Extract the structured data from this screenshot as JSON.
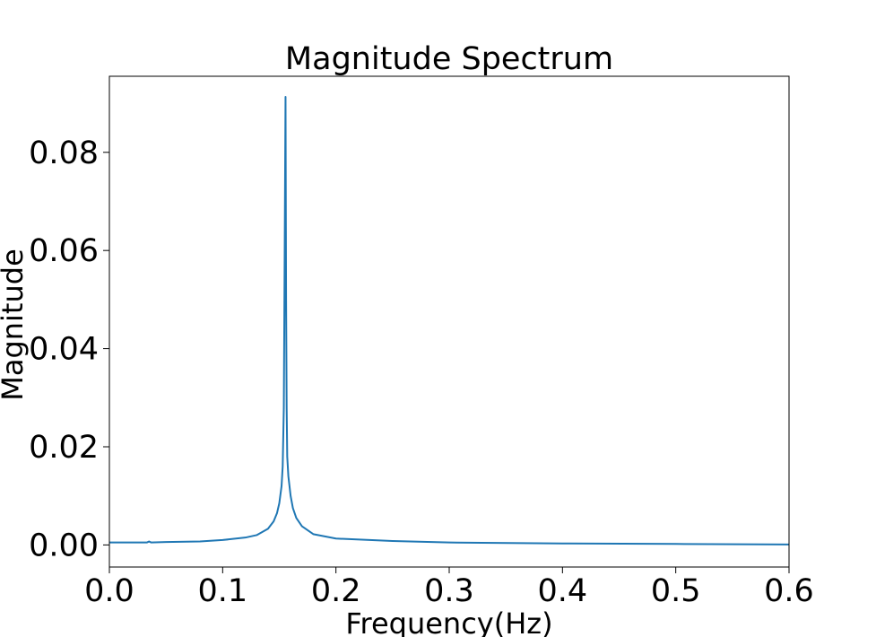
{
  "chart_data": {
    "type": "line",
    "title": "Magnitude Spectrum",
    "xlabel": "Frequency(Hz)",
    "ylabel": "Magnitude",
    "xlim": [
      0.0,
      0.6
    ],
    "ylim": [
      -0.0045,
      0.0955
    ],
    "grid": false,
    "line_color": "#1f77b4",
    "x_ticks": [
      0.0,
      0.1,
      0.2,
      0.3,
      0.4,
      0.5,
      0.6
    ],
    "x_tick_labels": [
      "0.0",
      "0.1",
      "0.2",
      "0.3",
      "0.4",
      "0.5",
      "0.6"
    ],
    "y_ticks": [
      0.0,
      0.02,
      0.04,
      0.06,
      0.08
    ],
    "y_tick_labels": [
      "0.00",
      "0.02",
      "0.04",
      "0.06",
      "0.08"
    ],
    "series": [
      {
        "x": [
          0.0,
          0.02,
          0.033,
          0.035,
          0.037,
          0.05,
          0.08,
          0.1,
          0.12,
          0.13,
          0.14,
          0.145,
          0.148,
          0.15,
          0.152,
          0.153,
          0.154,
          0.1555,
          0.156,
          0.1565,
          0.157,
          0.158,
          0.16,
          0.162,
          0.165,
          0.17,
          0.18,
          0.2,
          0.25,
          0.3,
          0.4,
          0.5,
          0.6
        ],
        "y": [
          0.0005,
          0.0005,
          0.0005,
          0.0007,
          0.0005,
          0.0006,
          0.0007,
          0.001,
          0.0015,
          0.002,
          0.0033,
          0.0048,
          0.0065,
          0.0085,
          0.012,
          0.016,
          0.028,
          0.0913,
          0.05,
          0.028,
          0.018,
          0.014,
          0.01,
          0.0075,
          0.0055,
          0.0038,
          0.0022,
          0.0013,
          0.0008,
          0.0005,
          0.0003,
          0.0002,
          0.0001
        ]
      }
    ]
  }
}
